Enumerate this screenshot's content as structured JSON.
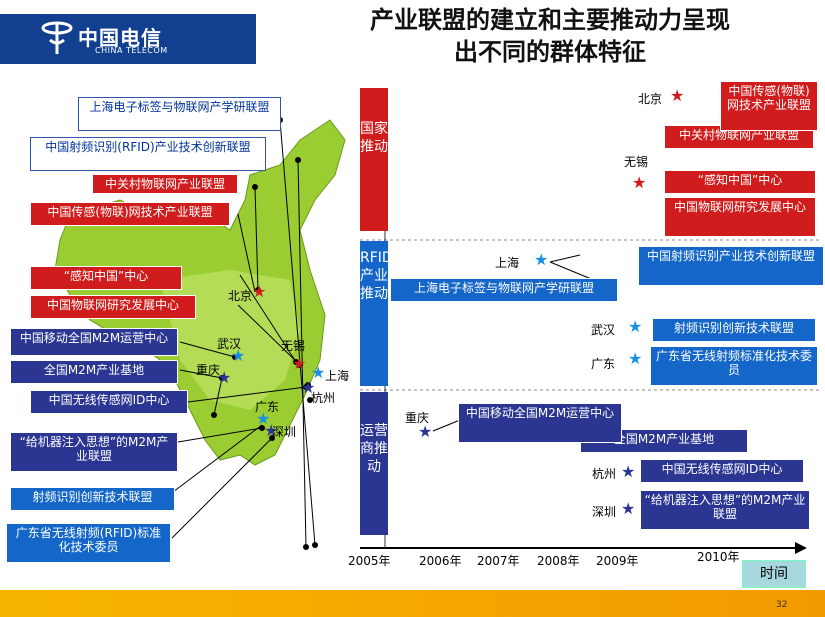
{
  "header": {
    "logo_cn": "中国电信",
    "logo_en": "CHINA TELECOM",
    "title_line1": "产业联盟的建立和主要推动力呈现",
    "title_line2": "出不同的群体特征"
  },
  "left_labels": [
    "上海电子标签与物联网产学研联盟",
    "中国射频识别(RFID)产业技术创新联盟",
    "中关村物联网产业联盟",
    "中国传感(物联)网技术产业联盟",
    "“感知中国”中心",
    "中国物联网研究发展中心",
    "中国移动全国M2M运营中心",
    "全国M2M产业基地",
    "中国无线传感网ID中心",
    "“给机器注入思想”的M2M产业联盟",
    "射频识别创新技术联盟",
    "广东省无线射频(RFID)标准化技术委员"
  ],
  "map_cities": {
    "beijing": "北京",
    "wuhan": "武汉",
    "wuxi": "无锡",
    "chongqing": "重庆",
    "shanghai": "上海",
    "hangzhou": "杭州",
    "guangdong": "广东",
    "shenzhen": "深圳"
  },
  "categories": {
    "national": "国家推动",
    "rfid": "RFID产业推动",
    "operator": "运营商推动"
  },
  "timeline_cities": {
    "beijing": "北京",
    "wuxi": "无锡",
    "shanghai": "上海",
    "wuhan": "武汉",
    "guangdong": "广东",
    "chongqing": "重庆",
    "hangzhou": "杭州",
    "shenzhen": "深圳"
  },
  "timeline_boxes": {
    "ctia": "中国传感(物联)网技术产业联盟",
    "zgc": "中关村物联网产业联盟",
    "sensing": "“感知中国”中心",
    "iot_center": "中国物联网研究发展中心",
    "sh_alliance": "上海电子标签与物联网产学研联盟",
    "rfid_alliance": "中国射频识别产业技术创新联盟",
    "rfid_tech": "射频识别创新技术联盟",
    "gd_rfid": "广东省无线射频标准化技术委员",
    "m2m_center": "中国移动全国M2M运营中心",
    "m2m_base": "全国M2M产业基地",
    "wsn_id": "中国无线传感网ID中心",
    "m2m_ideas": "“给机器注入思想”的M2M产业联盟"
  },
  "axis": {
    "years": [
      "2005年",
      "2006年",
      "2007年",
      "2008年",
      "2009年",
      "2010年"
    ],
    "label": "时间"
  },
  "footer": {
    "page": "32"
  },
  "colors": {
    "red": "#d01c1c",
    "blue": "#1466c8",
    "navy": "#2b3592",
    "map_green": "#9acd32",
    "band": "#f5a800"
  }
}
